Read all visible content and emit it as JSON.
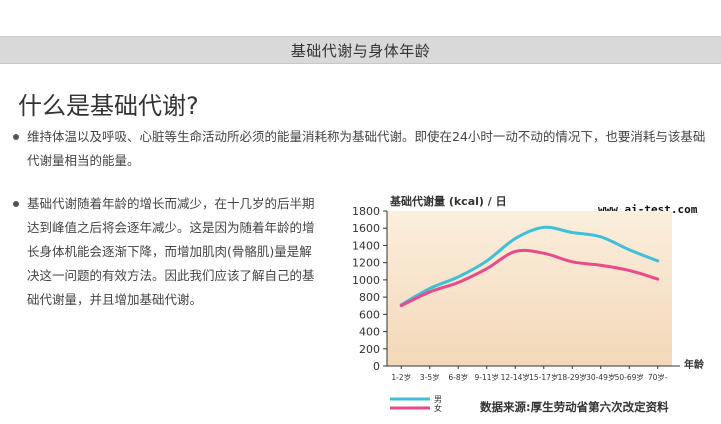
{
  "header": {
    "title": "基础代谢与身体年龄"
  },
  "section": {
    "title": "什么是基础代谢?",
    "paragraph1": "维持体温以及呼吸、心脏等生命活动所必须的能量消耗称为基础代谢。即使在24小时一动不动的情况下，也要消耗与该基础代谢量相当的能量。",
    "paragraph2": "基础代谢随着年龄的增长而减少，在十几岁的后半期达到峰值之后将会逐年减少。这是因为随着年龄的增长身体机能会逐渐下降，而增加肌肉(骨骼肌)量是解决这一问题的有效方法。因此我们应该了解自己的基础代谢量，并且增加基础代谢。"
  },
  "watermark": "www.ai-test.com",
  "chart_data": {
    "type": "line",
    "title": "基础代谢量 (kcal) / 日",
    "xlabel": "年龄",
    "ylabel": "",
    "categories": [
      "1-2岁",
      "3-5岁",
      "6-8岁",
      "9-11岁",
      "12-14岁",
      "15-17岁",
      "18-29岁",
      "30-49岁",
      "50-69岁",
      "70岁-"
    ],
    "ylim": [
      0,
      1800
    ],
    "yticks": [
      0,
      200,
      400,
      600,
      800,
      1000,
      1200,
      1400,
      1600,
      1800
    ],
    "series": [
      {
        "name": "男",
        "color": "#3fc0d8",
        "values": [
          710,
          900,
          1035,
          1220,
          1480,
          1610,
          1550,
          1500,
          1350,
          1220
        ]
      },
      {
        "name": "女",
        "color": "#e84a8a",
        "values": [
          700,
          860,
          970,
          1130,
          1330,
          1310,
          1210,
          1170,
          1110,
          1010
        ]
      }
    ],
    "legend_position": "bottom-left",
    "source": "数据来源:厚生劳动省第六次改定资料",
    "grid": false,
    "background_gradient": [
      "#fbeedd",
      "#f3d8b8"
    ]
  }
}
